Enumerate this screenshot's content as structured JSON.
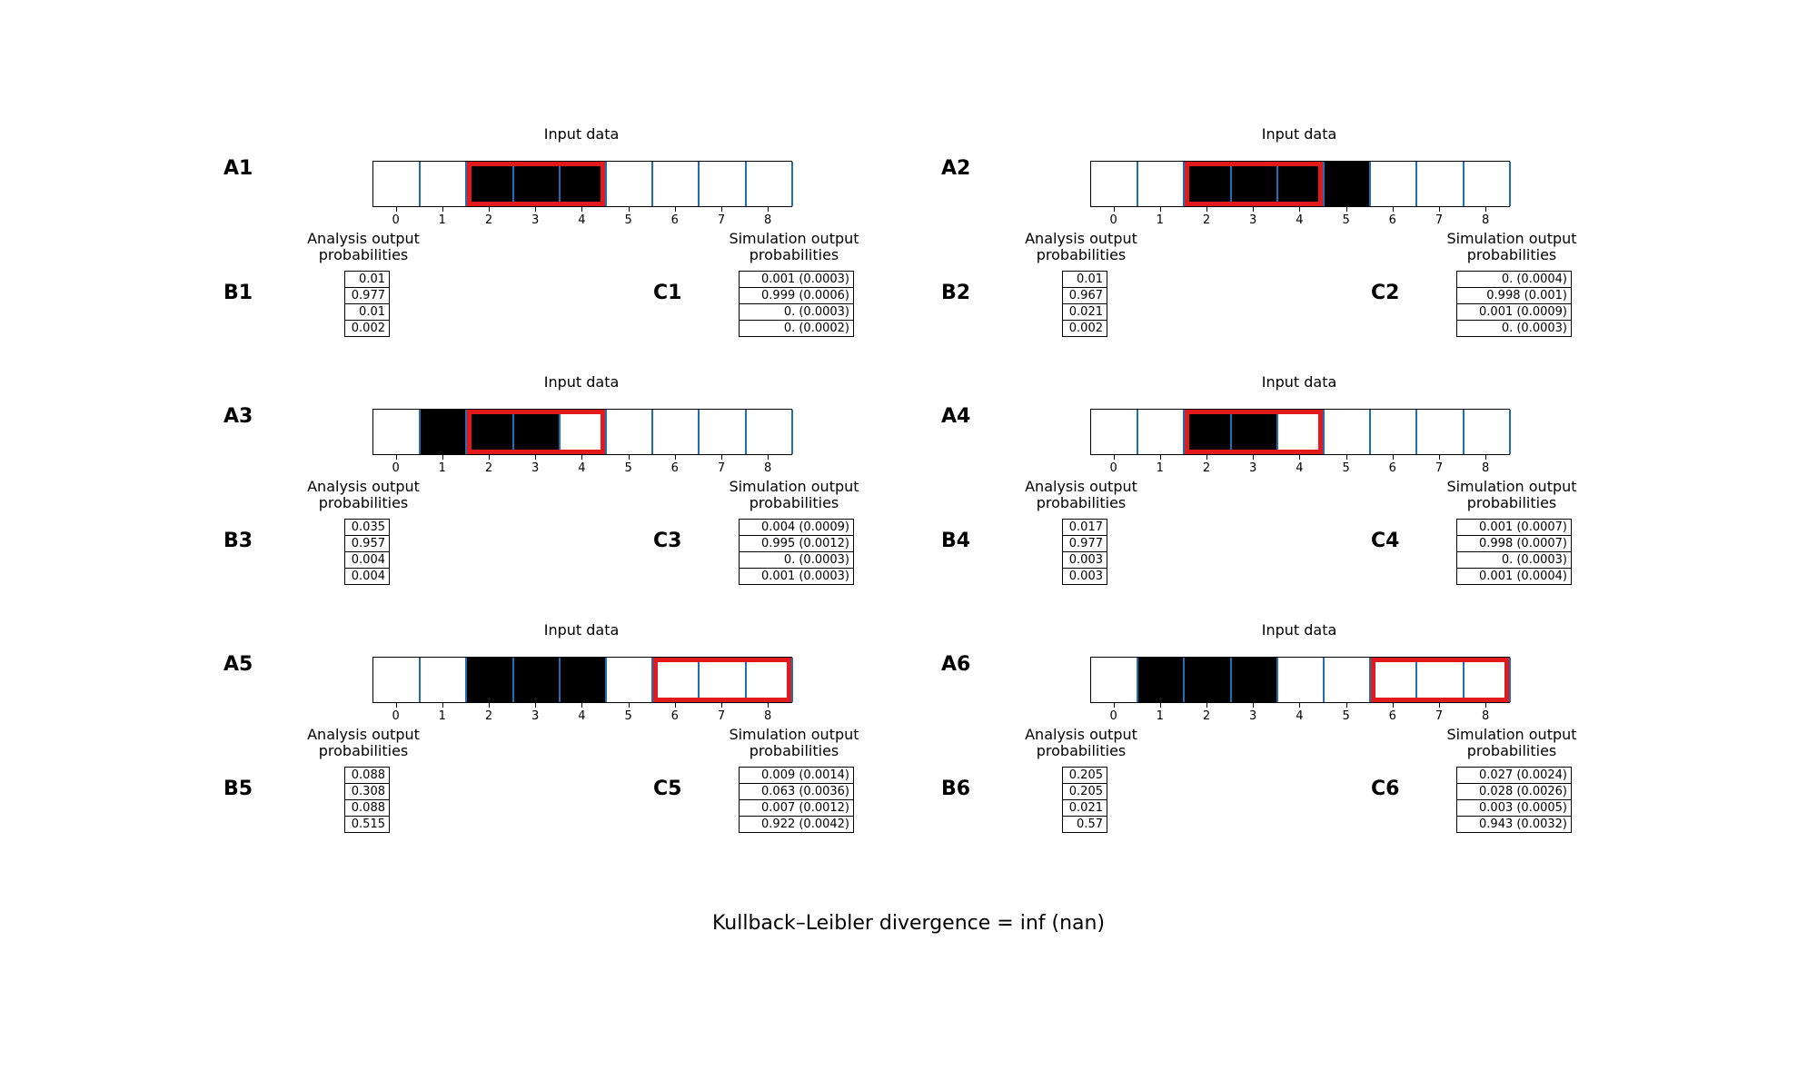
{
  "footer": "Kullback–Leibler divergence = inf (nan)",
  "input_title": "Input data",
  "analysis_title": "Analysis output\nprobabilities",
  "simulation_title": "Simulation output\nprobabilities",
  "tick_labels": [
    "0",
    "1",
    "2",
    "3",
    "4",
    "5",
    "6",
    "7",
    "8"
  ],
  "colors": {
    "divider": "#1f6fb4",
    "highlight": "#e31a1c",
    "filled": "#000000"
  },
  "cases": [
    {
      "a_label": "A1",
      "b_label": "B1",
      "c_label": "C1",
      "filled": [
        2,
        3,
        4
      ],
      "highlight": [
        2,
        4
      ],
      "analysis": [
        "0.01",
        "0.977",
        "0.01",
        "0.002"
      ],
      "simulation": [
        "0.001 (0.0003)",
        "0.999 (0.0006)",
        "0. (0.0003)",
        "0. (0.0002)"
      ]
    },
    {
      "a_label": "A2",
      "b_label": "B2",
      "c_label": "C2",
      "filled": [
        2,
        3,
        4,
        5
      ],
      "highlight": [
        2,
        4
      ],
      "analysis": [
        "0.01",
        "0.967",
        "0.021",
        "0.002"
      ],
      "simulation": [
        "0. (0.0004)",
        "0.998 (0.001)",
        "0.001 (0.0009)",
        "0. (0.0003)"
      ]
    },
    {
      "a_label": "A3",
      "b_label": "B3",
      "c_label": "C3",
      "filled": [
        1,
        2,
        3
      ],
      "highlight": [
        2,
        4
      ],
      "analysis": [
        "0.035",
        "0.957",
        "0.004",
        "0.004"
      ],
      "simulation": [
        "0.004 (0.0009)",
        "0.995 (0.0012)",
        "0. (0.0003)",
        "0.001 (0.0003)"
      ]
    },
    {
      "a_label": "A4",
      "b_label": "B4",
      "c_label": "C4",
      "filled": [
        2,
        3
      ],
      "highlight": [
        2,
        4
      ],
      "analysis": [
        "0.017",
        "0.977",
        "0.003",
        "0.003"
      ],
      "simulation": [
        "0.001 (0.0007)",
        "0.998 (0.0007)",
        "0. (0.0003)",
        "0.001 (0.0004)"
      ]
    },
    {
      "a_label": "A5",
      "b_label": "B5",
      "c_label": "C5",
      "filled": [
        2,
        3,
        4
      ],
      "highlight": [
        6,
        8
      ],
      "analysis": [
        "0.088",
        "0.308",
        "0.088",
        "0.515"
      ],
      "simulation": [
        "0.009 (0.0014)",
        "0.063 (0.0036)",
        "0.007 (0.0012)",
        "0.922 (0.0042)"
      ]
    },
    {
      "a_label": "A6",
      "b_label": "B6",
      "c_label": "C6",
      "filled": [
        1,
        2,
        3
      ],
      "highlight": [
        6,
        8
      ],
      "analysis": [
        "0.205",
        "0.205",
        "0.021",
        "0.57"
      ],
      "simulation": [
        "0.027 (0.0024)",
        "0.028 (0.0026)",
        "0.003 (0.0005)",
        "0.943 (0.0032)"
      ]
    }
  ]
}
